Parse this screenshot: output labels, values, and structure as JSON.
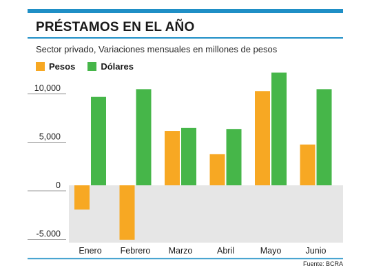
{
  "title": "PRÉSTAMOS EN EL AÑO",
  "subtitle": "Sector privado, Variaciones mensuales en millones de pesos",
  "source": "Fuente: BCRA",
  "colors": {
    "accent": "#1f8fc6",
    "pesos": "#f7a823",
    "dolares": "#46b649",
    "negative_band": "#e6e6e6"
  },
  "chart_data": {
    "type": "bar",
    "categories": [
      "Enero",
      "Febrero",
      "Marzo",
      "Abril",
      "Mayo",
      "Junio"
    ],
    "series": [
      {
        "name": "Pesos",
        "color": "#f7a823",
        "values": [
          -2500,
          -5600,
          5600,
          3200,
          9700,
          4200
        ]
      },
      {
        "name": "Dólares",
        "color": "#46b649",
        "values": [
          9100,
          9900,
          5900,
          5800,
          11600,
          9900
        ]
      }
    ],
    "yticks": [
      -5000,
      0,
      5000,
      10000
    ],
    "ytick_labels": [
      "-5.000",
      "0",
      "5,000",
      "10,000"
    ],
    "ylim": [
      -5700,
      12000
    ],
    "legend": "top-left",
    "grid": false
  }
}
